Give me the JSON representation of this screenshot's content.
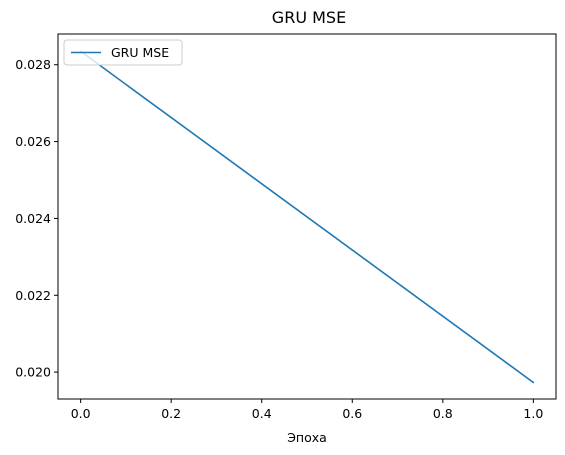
{
  "chart_data": {
    "type": "line",
    "title": "GRU MSE",
    "xlabel": "Эпоха",
    "ylabel": "",
    "x": [
      0.0,
      1.0
    ],
    "series": [
      {
        "name": "GRU MSE",
        "values": [
          0.02835,
          0.01973
        ],
        "color": "#1f77b4"
      }
    ],
    "xlim": [
      -0.05,
      1.05
    ],
    "ylim": [
      0.0193,
      0.0288
    ],
    "xticks": [
      0.0,
      0.2,
      0.4,
      0.6,
      0.8,
      1.0
    ],
    "xtick_labels": [
      "0.0",
      "0.2",
      "0.4",
      "0.6",
      "0.8",
      "1.0"
    ],
    "yticks": [
      0.02,
      0.022,
      0.024,
      0.026,
      0.028
    ],
    "ytick_labels": [
      "0.020",
      "0.022",
      "0.024",
      "0.026",
      "0.028"
    ],
    "grid": false,
    "legend": {
      "position": "top-left",
      "entries": [
        "GRU MSE"
      ]
    }
  }
}
